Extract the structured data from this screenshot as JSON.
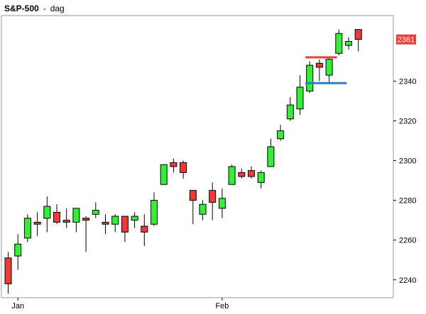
{
  "header": {
    "symbol": "S&P-500",
    "separator": "-",
    "period": "dag"
  },
  "colors": {
    "up_candle": "#33f033",
    "down_candle": "#f03a3a",
    "wick": "#000000",
    "background": "#ffffff",
    "frame": "#9a9a9a",
    "resistance_line": "#ee3b3b",
    "support_line": "#2a7dd1",
    "price_badge_bg": "#ee3b3b",
    "price_badge_text": "#ffffff"
  },
  "chart_data": {
    "type": "candlestick",
    "title": "S&P-500 - dag",
    "xlabel": "",
    "ylabel": "",
    "ylim": [
      2231,
      2373
    ],
    "y_ticks": [
      2240,
      2260,
      2280,
      2300,
      2320,
      2340
    ],
    "x_tick_labels": [
      {
        "label": "Jan",
        "candle_index": 1
      },
      {
        "label": "Feb",
        "candle_index": 22
      }
    ],
    "grid": false,
    "legend": "none",
    "last_price_label": "2361",
    "candles": [
      {
        "o": 2251,
        "h": 2254,
        "l": 2233,
        "c": 2238
      },
      {
        "o": 2252,
        "h": 2263,
        "l": 2245,
        "c": 2258
      },
      {
        "o": 2261,
        "h": 2273,
        "l": 2259,
        "c": 2271
      },
      {
        "o": 2269,
        "h": 2274,
        "l": 2262,
        "c": 2268
      },
      {
        "o": 2271,
        "h": 2282,
        "l": 2264,
        "c": 2277
      },
      {
        "o": 2274,
        "h": 2278,
        "l": 2268,
        "c": 2269
      },
      {
        "o": 2270,
        "h": 2276,
        "l": 2266,
        "c": 2269
      },
      {
        "o": 2269,
        "h": 2276,
        "l": 2264,
        "c": 2276
      },
      {
        "o": 2271,
        "h": 2272,
        "l": 2254,
        "c": 2270
      },
      {
        "o": 2273,
        "h": 2279,
        "l": 2271,
        "c": 2275
      },
      {
        "o": 2269,
        "h": 2273,
        "l": 2263,
        "c": 2268
      },
      {
        "o": 2268,
        "h": 2273,
        "l": 2264,
        "c": 2272
      },
      {
        "o": 2272,
        "h": 2272,
        "l": 2259,
        "c": 2264
      },
      {
        "o": 2270,
        "h": 2274,
        "l": 2266,
        "c": 2272
      },
      {
        "o": 2267,
        "h": 2273,
        "l": 2257,
        "c": 2264
      },
      {
        "o": 2268,
        "h": 2284,
        "l": 2267,
        "c": 2280
      },
      {
        "o": 2288,
        "h": 2297,
        "l": 2288,
        "c": 2298
      },
      {
        "o": 2299,
        "h": 2301,
        "l": 2294,
        "c": 2297
      },
      {
        "o": 2299,
        "h": 2300,
        "l": 2291,
        "c": 2294
      },
      {
        "o": 2285,
        "h": 2285,
        "l": 2268,
        "c": 2280
      },
      {
        "o": 2273,
        "h": 2280,
        "l": 2270,
        "c": 2278
      },
      {
        "o": 2285,
        "h": 2289,
        "l": 2270,
        "c": 2279
      },
      {
        "o": 2276,
        "h": 2286,
        "l": 2271,
        "c": 2281
      },
      {
        "o": 2288,
        "h": 2298,
        "l": 2288,
        "c": 2297
      },
      {
        "o": 2294,
        "h": 2296,
        "l": 2291,
        "c": 2292
      },
      {
        "o": 2295,
        "h": 2297,
        "l": 2291,
        "c": 2292
      },
      {
        "o": 2289,
        "h": 2295,
        "l": 2286,
        "c": 2294
      },
      {
        "o": 2297,
        "h": 2311,
        "l": 2297,
        "c": 2307
      },
      {
        "o": 2311,
        "h": 2318,
        "l": 2310,
        "c": 2315
      },
      {
        "o": 2321,
        "h": 2332,
        "l": 2320,
        "c": 2328
      },
      {
        "o": 2326,
        "h": 2343,
        "l": 2323,
        "c": 2337
      },
      {
        "o": 2335,
        "h": 2350,
        "l": 2334,
        "c": 2348
      },
      {
        "o": 2349,
        "h": 2351,
        "l": 2340,
        "c": 2347
      },
      {
        "o": 2343,
        "h": 2352,
        "l": 2339,
        "c": 2351
      },
      {
        "o": 2354,
        "h": 2366,
        "l": 2353,
        "c": 2364
      },
      {
        "o": 2358,
        "h": 2362,
        "l": 2356,
        "c": 2360
      },
      {
        "o": 2366,
        "h": 2366,
        "l": 2355,
        "c": 2361
      }
    ],
    "horizontal_lines": [
      {
        "name": "resistance",
        "value": 2352,
        "from_index": 31,
        "to_index": 33.8,
        "color": "#ee3b3b"
      },
      {
        "name": "support",
        "value": 2339,
        "from_index": 31,
        "to_index": 34.8,
        "color": "#2a7dd1"
      }
    ]
  }
}
